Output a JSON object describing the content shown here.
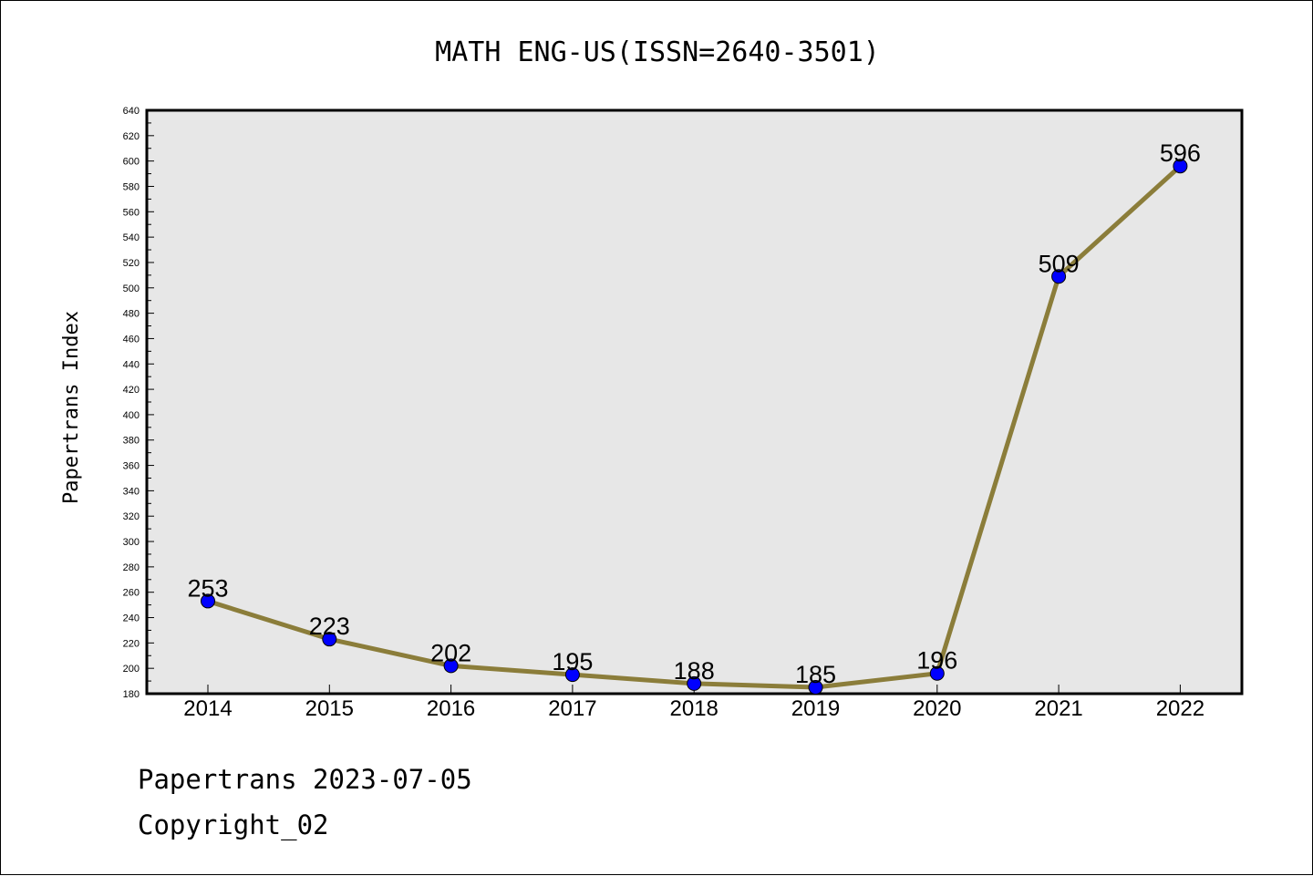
{
  "chart_data": {
    "type": "line",
    "title": "MATH ENG-US(ISSN=2640-3501)",
    "ylabel": "Papertrans Index",
    "xlabel": "",
    "categories": [
      "2014",
      "2015",
      "2016",
      "2017",
      "2018",
      "2019",
      "2020",
      "2021",
      "2022"
    ],
    "series": [
      {
        "values": [
          253,
          223,
          202,
          195,
          188,
          185,
          196,
          509,
          596
        ]
      }
    ],
    "ylim": [
      180,
      640
    ],
    "y_ticks": [
      180,
      200,
      220,
      240,
      260,
      280,
      300,
      320,
      340,
      360,
      380,
      400,
      420,
      440,
      460,
      480,
      500,
      520,
      540,
      560,
      580,
      600,
      620,
      640
    ],
    "grid": false,
    "colors": {
      "line": "#8b7d3a",
      "marker": "#0000ff",
      "plot_background": "#e7e7e7"
    }
  },
  "footer": {
    "line1": "Papertrans 2023-07-05",
    "line2": "Copyright_02"
  }
}
